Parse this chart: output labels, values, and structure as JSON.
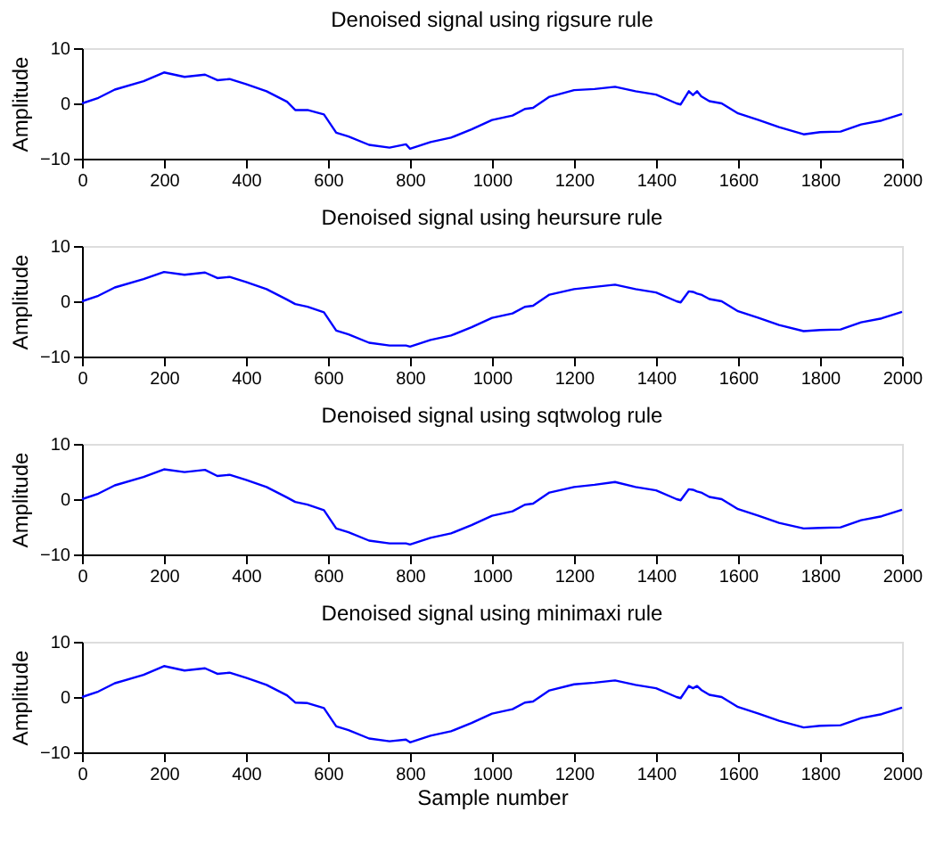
{
  "chart_data": [
    {
      "type": "line",
      "title": "Denoised signal using rigsure rule",
      "ylabel": "Amplitude",
      "xlim": [
        0,
        2000
      ],
      "ylim": [
        -10,
        10
      ],
      "xticks": [
        0,
        200,
        400,
        600,
        800,
        1000,
        1200,
        1400,
        1600,
        1800,
        2000
      ],
      "yticks": [
        -10,
        0,
        10
      ],
      "grid": false,
      "x": [
        0,
        40,
        80,
        150,
        200,
        250,
        300,
        330,
        360,
        400,
        450,
        500,
        520,
        550,
        590,
        620,
        650,
        700,
        750,
        790,
        800,
        850,
        900,
        950,
        1000,
        1050,
        1080,
        1100,
        1140,
        1200,
        1250,
        1300,
        1350,
        1400,
        1450,
        1460,
        1480,
        1490,
        1500,
        1510,
        1530,
        1560,
        1600,
        1650,
        1700,
        1760,
        1800,
        1850,
        1900,
        1950,
        2000
      ],
      "series": [
        {
          "color": "#0000ff",
          "values": [
            0,
            1,
            2.5,
            4,
            5.6,
            4.8,
            5.2,
            4.2,
            4.4,
            3.5,
            2.2,
            0.3,
            -1.2,
            -1.2,
            -2,
            -5.3,
            -6,
            -7.5,
            -8,
            -7.4,
            -8.2,
            -7,
            -6.2,
            -4.7,
            -3,
            -2.2,
            -1,
            -0.8,
            1.2,
            2.4,
            2.6,
            3,
            2.2,
            1.6,
            0,
            -0.2,
            2.2,
            1.5,
            2.2,
            1.3,
            0.4,
            0,
            -1.8,
            -3,
            -4.3,
            -5.6,
            -5.2,
            -5.1,
            -3.8,
            -3.1,
            -1.9
          ]
        }
      ]
    },
    {
      "type": "line",
      "title": "Denoised signal using heursure rule",
      "ylabel": "Amplitude",
      "xlim": [
        0,
        2000
      ],
      "ylim": [
        -10,
        10
      ],
      "xticks": [
        0,
        200,
        400,
        600,
        800,
        1000,
        1200,
        1400,
        1600,
        1800,
        2000
      ],
      "yticks": [
        -10,
        0,
        10
      ],
      "grid": false,
      "x": [
        0,
        40,
        80,
        150,
        200,
        250,
        300,
        330,
        360,
        400,
        450,
        500,
        520,
        550,
        590,
        620,
        650,
        700,
        750,
        790,
        800,
        850,
        900,
        950,
        1000,
        1050,
        1080,
        1100,
        1140,
        1200,
        1250,
        1300,
        1350,
        1400,
        1450,
        1460,
        1480,
        1490,
        1500,
        1510,
        1530,
        1560,
        1600,
        1650,
        1700,
        1760,
        1800,
        1850,
        1900,
        1950,
        2000
      ],
      "series": [
        {
          "color": "#0000ff",
          "values": [
            0,
            1,
            2.5,
            4,
            5.3,
            4.8,
            5.2,
            4.2,
            4.4,
            3.5,
            2.2,
            0.3,
            -0.5,
            -1,
            -2,
            -5.3,
            -6,
            -7.5,
            -8,
            -8,
            -8.2,
            -7,
            -6.2,
            -4.7,
            -3,
            -2.2,
            -1,
            -0.8,
            1.2,
            2.2,
            2.6,
            3,
            2.2,
            1.6,
            0,
            -0.2,
            1.8,
            1.7,
            1.4,
            1.2,
            0.4,
            0,
            -1.8,
            -3,
            -4.3,
            -5.4,
            -5.2,
            -5.1,
            -3.8,
            -3.1,
            -1.9
          ]
        }
      ]
    },
    {
      "type": "line",
      "title": "Denoised signal using sqtwolog rule",
      "ylabel": "Amplitude",
      "xlim": [
        0,
        2000
      ],
      "ylim": [
        -10,
        10
      ],
      "xticks": [
        0,
        200,
        400,
        600,
        800,
        1000,
        1200,
        1400,
        1600,
        1800,
        2000
      ],
      "yticks": [
        -10,
        0,
        10
      ],
      "grid": false,
      "x": [
        0,
        40,
        80,
        150,
        200,
        250,
        300,
        330,
        360,
        400,
        450,
        500,
        520,
        550,
        590,
        620,
        650,
        700,
        750,
        790,
        800,
        850,
        900,
        950,
        1000,
        1050,
        1080,
        1100,
        1140,
        1200,
        1250,
        1300,
        1350,
        1400,
        1450,
        1460,
        1480,
        1490,
        1500,
        1510,
        1530,
        1560,
        1600,
        1650,
        1700,
        1760,
        1800,
        1850,
        1900,
        1950,
        2000
      ],
      "series": [
        {
          "color": "#0000ff",
          "values": [
            0,
            1,
            2.5,
            4,
            5.4,
            4.9,
            5.3,
            4.2,
            4.4,
            3.5,
            2.2,
            0.3,
            -0.5,
            -1,
            -2,
            -5.3,
            -6,
            -7.5,
            -8,
            -8,
            -8.2,
            -7,
            -6.2,
            -4.7,
            -3,
            -2.2,
            -1,
            -0.8,
            1.2,
            2.2,
            2.6,
            3.1,
            2.2,
            1.6,
            0,
            -0.2,
            1.8,
            1.7,
            1.4,
            1.2,
            0.4,
            0,
            -1.8,
            -3,
            -4.3,
            -5.3,
            -5.2,
            -5.1,
            -3.8,
            -3.1,
            -1.9
          ]
        }
      ]
    },
    {
      "type": "line",
      "title": "Denoised signal using minimaxi rule",
      "xlabel": "Sample number",
      "ylabel": "Amplitude",
      "xlim": [
        0,
        2000
      ],
      "ylim": [
        -10,
        10
      ],
      "xticks": [
        0,
        200,
        400,
        600,
        800,
        1000,
        1200,
        1400,
        1600,
        1800,
        2000
      ],
      "yticks": [
        -10,
        0,
        10
      ],
      "grid": false,
      "x": [
        0,
        40,
        80,
        150,
        200,
        250,
        300,
        330,
        360,
        400,
        450,
        500,
        520,
        550,
        590,
        620,
        650,
        700,
        750,
        790,
        800,
        850,
        900,
        950,
        1000,
        1050,
        1080,
        1100,
        1140,
        1200,
        1250,
        1300,
        1350,
        1400,
        1450,
        1460,
        1480,
        1490,
        1500,
        1510,
        1530,
        1560,
        1600,
        1650,
        1700,
        1760,
        1800,
        1850,
        1900,
        1950,
        2000
      ],
      "series": [
        {
          "color": "#0000ff",
          "values": [
            0,
            1,
            2.5,
            4,
            5.6,
            4.8,
            5.2,
            4.2,
            4.4,
            3.5,
            2.2,
            0.3,
            -1,
            -1.1,
            -2,
            -5.3,
            -6,
            -7.5,
            -8,
            -7.7,
            -8.2,
            -7,
            -6.2,
            -4.7,
            -3,
            -2.2,
            -1,
            -0.8,
            1.2,
            2.3,
            2.6,
            3,
            2.2,
            1.6,
            0,
            -0.2,
            2,
            1.6,
            2,
            1.3,
            0.4,
            0,
            -1.8,
            -3,
            -4.3,
            -5.5,
            -5.2,
            -5.1,
            -3.8,
            -3.1,
            -1.9
          ]
        }
      ]
    }
  ]
}
